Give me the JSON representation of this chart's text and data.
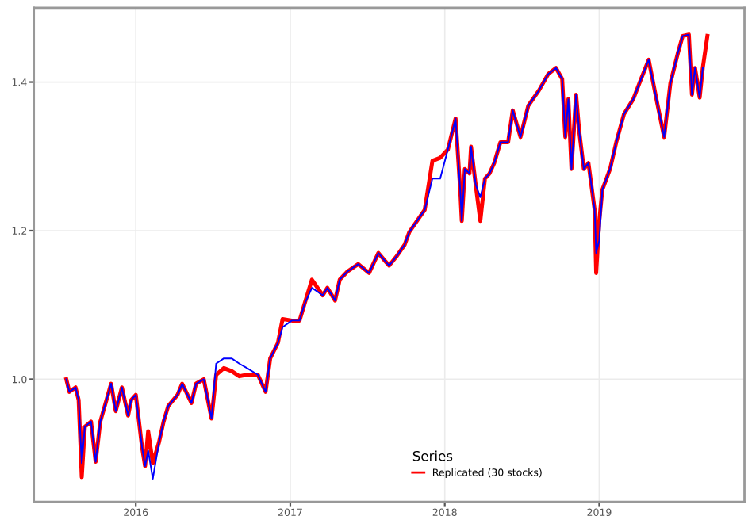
{
  "chart_data": {
    "type": "line",
    "x": [
      2015.55,
      2015.57,
      2015.61,
      2015.63,
      2015.65,
      2015.67,
      2015.71,
      2015.74,
      2015.77,
      2015.81,
      2015.84,
      2015.87,
      2015.91,
      2015.95,
      2015.97,
      2016.0,
      2016.04,
      2016.06,
      2016.08,
      2016.11,
      2016.15,
      2016.18,
      2016.21,
      2016.27,
      2016.3,
      2016.36,
      2016.39,
      2016.44,
      2016.49,
      2016.52,
      2016.57,
      2016.62,
      2016.67,
      2016.72,
      2016.79,
      2016.84,
      2016.87,
      2016.92,
      2016.95,
      2017.01,
      2017.06,
      2017.09,
      2017.14,
      2017.21,
      2017.24,
      2017.29,
      2017.32,
      2017.37,
      2017.44,
      2017.51,
      2017.57,
      2017.61,
      2017.64,
      2017.69,
      2017.74,
      2017.77,
      2017.84,
      2017.87,
      2017.92,
      2017.97,
      2018.02,
      2018.07,
      2018.1,
      2018.11,
      2018.13,
      2018.16,
      2018.17,
      2018.2,
      2018.23,
      2018.26,
      2018.29,
      2018.32,
      2018.36,
      2018.41,
      2018.44,
      2018.49,
      2018.54,
      2018.61,
      2018.67,
      2018.72,
      2018.76,
      2018.78,
      2018.8,
      2018.82,
      2018.85,
      2018.87,
      2018.9,
      2018.93,
      2018.97,
      2018.98,
      2019.0,
      2019.02,
      2019.07,
      2019.11,
      2019.16,
      2019.22,
      2019.27,
      2019.32,
      2019.37,
      2019.42,
      2019.46,
      2019.51,
      2019.54,
      2019.58,
      2019.6,
      2019.62,
      2019.65,
      2019.67,
      2019.7
    ],
    "series": [
      {
        "name": "Replicated (30 stocks)",
        "color": "#ff0000",
        "values": [
          1.0,
          0.983,
          0.989,
          0.972,
          0.868,
          0.936,
          0.943,
          0.889,
          0.943,
          0.972,
          0.994,
          0.957,
          0.989,
          0.951,
          0.972,
          0.979,
          0.909,
          0.883,
          0.93,
          0.887,
          0.915,
          0.943,
          0.964,
          0.979,
          0.994,
          0.968,
          0.994,
          1.0,
          0.947,
          1.006,
          1.015,
          1.011,
          1.004,
          1.006,
          1.006,
          0.983,
          1.028,
          1.049,
          1.081,
          1.079,
          1.079,
          1.1,
          1.134,
          1.113,
          1.123,
          1.106,
          1.134,
          1.145,
          1.155,
          1.143,
          1.17,
          1.16,
          1.153,
          1.166,
          1.181,
          1.198,
          1.219,
          1.228,
          1.294,
          1.298,
          1.309,
          1.351,
          1.255,
          1.213,
          1.283,
          1.277,
          1.313,
          1.262,
          1.213,
          1.27,
          1.277,
          1.291,
          1.319,
          1.319,
          1.362,
          1.326,
          1.368,
          1.389,
          1.411,
          1.419,
          1.404,
          1.326,
          1.377,
          1.283,
          1.383,
          1.334,
          1.283,
          1.291,
          1.228,
          1.143,
          1.213,
          1.255,
          1.283,
          1.319,
          1.357,
          1.377,
          1.404,
          1.43,
          1.377,
          1.326,
          1.398,
          1.44,
          1.462,
          1.464,
          1.383,
          1.419,
          1.379,
          1.419,
          1.462
        ]
      },
      {
        "color": "#0000ff",
        "values": [
          1.0,
          0.983,
          0.989,
          0.972,
          0.887,
          0.936,
          0.943,
          0.889,
          0.943,
          0.972,
          0.994,
          0.957,
          0.989,
          0.951,
          0.972,
          0.979,
          0.909,
          0.883,
          0.904,
          0.866,
          0.915,
          0.943,
          0.964,
          0.979,
          0.994,
          0.968,
          0.994,
          1.0,
          0.947,
          1.021,
          1.028,
          1.028,
          1.021,
          1.015,
          1.006,
          0.983,
          1.028,
          1.049,
          1.07,
          1.079,
          1.079,
          1.1,
          1.123,
          1.113,
          1.123,
          1.106,
          1.134,
          1.145,
          1.155,
          1.143,
          1.17,
          1.16,
          1.153,
          1.166,
          1.181,
          1.198,
          1.219,
          1.228,
          1.27,
          1.27,
          1.309,
          1.351,
          1.255,
          1.213,
          1.283,
          1.277,
          1.313,
          1.262,
          1.245,
          1.27,
          1.277,
          1.291,
          1.319,
          1.319,
          1.362,
          1.326,
          1.368,
          1.389,
          1.411,
          1.419,
          1.404,
          1.326,
          1.377,
          1.283,
          1.383,
          1.334,
          1.283,
          1.291,
          1.228,
          1.17,
          1.187,
          1.255,
          1.283,
          1.319,
          1.357,
          1.377,
          1.404,
          1.43,
          1.377,
          1.326,
          1.398,
          1.44,
          1.462,
          1.464,
          1.383,
          1.419,
          1.379,
          1.419,
          null
        ]
      }
    ],
    "xlim": [
      2015.34,
      2019.94
    ],
    "xticks": [
      2016,
      2017,
      2018,
      2019
    ],
    "ylim": [
      0.835,
      1.5
    ],
    "yticks": [
      {
        "value": 1.0,
        "label": "1.0"
      },
      {
        "value": 1.2,
        "label": "1.2"
      },
      {
        "value": 1.4,
        "label": "1.4"
      }
    ],
    "grid": true,
    "legend": "bottom",
    "legend_title": "Series",
    "marker": "none",
    "line_style": "solid"
  }
}
